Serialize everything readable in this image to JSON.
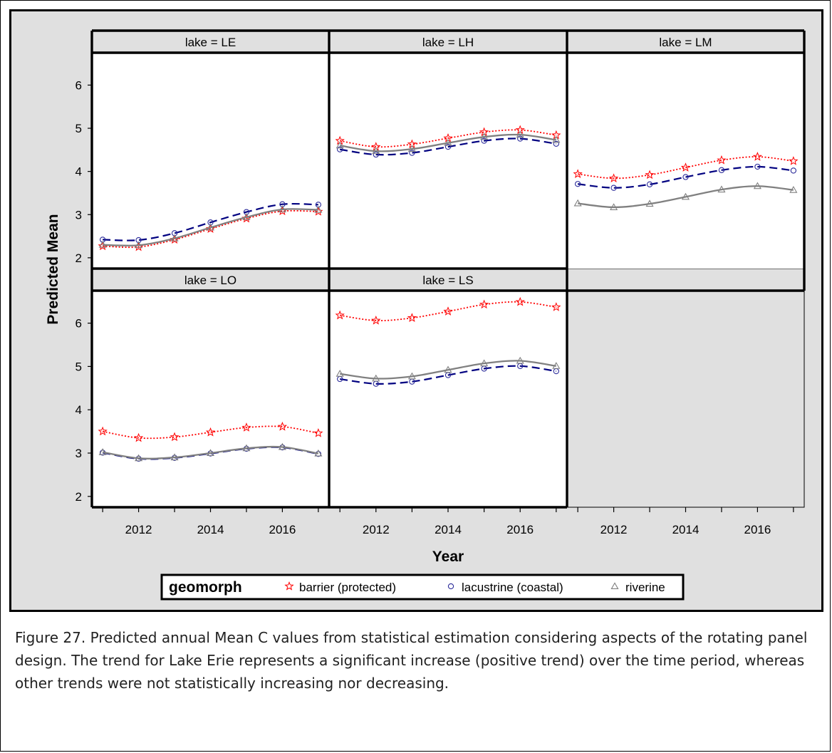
{
  "chart_data": {
    "type": "line",
    "panel_strip_prefix": "lake = ",
    "panels": [
      {
        "name": "LE",
        "series": {
          "barrier (protected)": [
            2.27,
            2.25,
            2.42,
            2.67,
            2.91,
            3.08,
            3.07
          ],
          "lacustrine (coastal)": [
            2.42,
            2.41,
            2.57,
            2.82,
            3.06,
            3.24,
            3.23
          ],
          "riverine": [
            2.3,
            2.29,
            2.45,
            2.7,
            2.94,
            3.12,
            3.11
          ]
        }
      },
      {
        "name": "LH",
        "series": {
          "barrier (protected)": [
            4.71,
            4.57,
            4.63,
            4.77,
            4.91,
            4.96,
            4.84
          ],
          "lacustrine (coastal)": [
            4.51,
            4.39,
            4.43,
            4.57,
            4.71,
            4.76,
            4.64
          ],
          "riverine": [
            4.6,
            4.47,
            4.52,
            4.66,
            4.8,
            4.85,
            4.73
          ]
        }
      },
      {
        "name": "LM",
        "series": {
          "barrier (protected)": [
            3.94,
            3.84,
            3.92,
            4.09,
            4.26,
            4.34,
            4.24
          ],
          "lacustrine (coastal)": [
            3.71,
            3.62,
            3.7,
            3.87,
            4.03,
            4.11,
            4.02
          ],
          "riverine": [
            3.26,
            3.17,
            3.25,
            3.41,
            3.58,
            3.66,
            3.57
          ]
        }
      },
      {
        "name": "LO",
        "series": {
          "barrier (protected)": [
            3.5,
            3.35,
            3.37,
            3.48,
            3.59,
            3.61,
            3.46
          ],
          "lacustrine (coastal)": [
            3.01,
            2.87,
            2.89,
            2.99,
            3.1,
            3.13,
            2.98
          ],
          "riverine": [
            3.02,
            2.88,
            2.9,
            3.0,
            3.11,
            3.14,
            2.99
          ]
        }
      },
      {
        "name": "LS",
        "series": {
          "barrier (protected)": [
            6.18,
            6.06,
            6.12,
            6.27,
            6.43,
            6.49,
            6.37
          ],
          "lacustrine (coastal)": [
            4.71,
            4.6,
            4.65,
            4.8,
            4.95,
            5.01,
            4.89
          ],
          "riverine": [
            4.83,
            4.72,
            4.77,
            4.92,
            5.07,
            5.13,
            5.01
          ]
        }
      }
    ],
    "x": [
      2011,
      2012,
      2013,
      2014,
      2015,
      2016,
      2017
    ],
    "xticks": [
      "2012",
      "2014",
      "2016"
    ],
    "yticks": [
      "2",
      "3",
      "4",
      "5",
      "6"
    ],
    "xlim": [
      2010.7,
      2017.3
    ],
    "ylim": [
      1.75,
      6.75
    ],
    "xlabel": "Year",
    "ylabel": "Predicted Mean",
    "legend_title": "geomorph",
    "series_styles": [
      {
        "name": "barrier (protected)",
        "color": "#ff0000",
        "marker": "star",
        "line": "dotted"
      },
      {
        "name": "lacustrine (coastal)",
        "color": "#000080",
        "marker": "circle",
        "line": "dashed",
        "marker_color": "#2b2b9a"
      },
      {
        "name": "riverine",
        "color": "#808080",
        "marker": "triangle",
        "line": "solid"
      }
    ],
    "legend_labels": [
      "barrier (protected)",
      "lacustrine (coastal)",
      "riverine"
    ]
  },
  "caption": "Figure 27. Predicted annual Mean C values from statistical estimation considering aspects of the rotating panel design.  The trend for Lake Erie represents a significant increase (positive trend) over the time period, whereas other trends were not statistically increasing nor decreasing."
}
